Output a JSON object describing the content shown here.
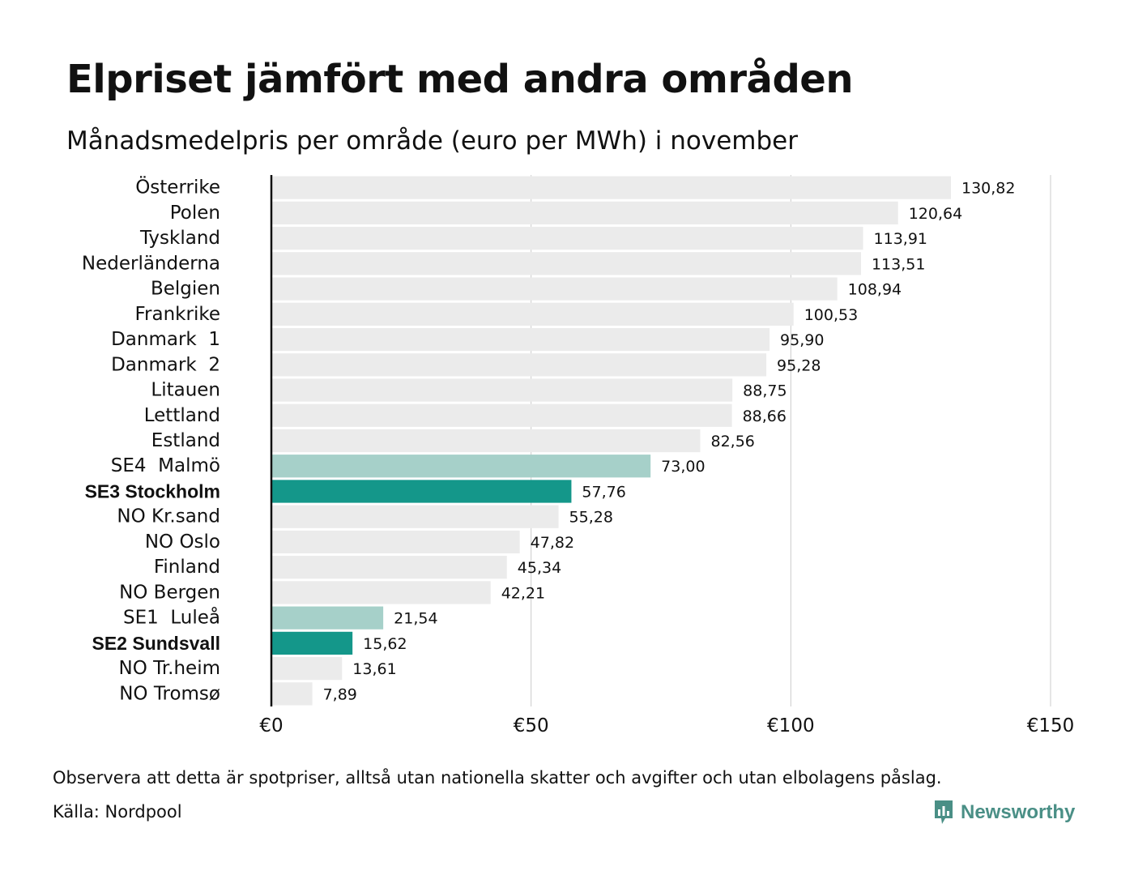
{
  "header": {
    "title": "Elpriset jämfört med andra områden",
    "subtitle": "Månadsmedelpris per område (euro per MWh) i november"
  },
  "footer": {
    "note": "Observera att detta är spotpriser, alltså utan nationella skatter och avgifter och utan elbolagens påslag.",
    "source": "Källa: Nordpool",
    "brand": "Newsworthy"
  },
  "colors": {
    "default_bar": "#ebebeb",
    "se_light_bar": "#a6d0c9",
    "se_highlight_bar": "#14978a",
    "gridline": "#cccccc",
    "axis": "#111111",
    "brand": "#4a8f86"
  },
  "icons": {
    "brand_logo": "bar-chart-speech-bubble-icon"
  },
  "chart_data": {
    "type": "bar",
    "orientation": "horizontal",
    "categories": [
      "Österrike",
      "Polen",
      "Tyskland",
      "Nederländerna",
      "Belgien",
      "Frankrike",
      "Danmark  1",
      "Danmark  2",
      "Litauen",
      "Lettland",
      "Estland",
      "SE4  Malmö",
      "SE3 Stockholm",
      "NO Kr.sand",
      "NO Oslo",
      "Finland",
      "NO Bergen",
      "SE1  Luleå",
      "SE2 Sundsvall",
      "NO Tr.heim",
      "NO Tromsø"
    ],
    "values": [
      130.82,
      120.64,
      113.91,
      113.51,
      108.94,
      100.53,
      95.9,
      95.28,
      88.75,
      88.66,
      82.56,
      73.0,
      57.76,
      55.28,
      47.82,
      45.34,
      42.21,
      21.54,
      15.62,
      13.61,
      7.89
    ],
    "value_labels": [
      "130,82",
      "120,64",
      "113,91",
      "113,51",
      "108,94",
      "100,53",
      "95,90",
      "95,28",
      "88,75",
      "88,66",
      "82,56",
      "73,00",
      "57,76",
      "55,28",
      "47,82",
      "45,34",
      "42,21",
      "21,54",
      "15,62",
      "13,61",
      "7,89"
    ],
    "bar_style": [
      "default",
      "default",
      "default",
      "default",
      "default",
      "default",
      "default",
      "default",
      "default",
      "default",
      "default",
      "se-light",
      "se-highlight",
      "default",
      "default",
      "default",
      "default",
      "se-light",
      "se-highlight",
      "default",
      "default"
    ],
    "bold_labels": [
      "SE3 Stockholm",
      "SE2 Sundsvall"
    ],
    "x_ticks": [
      0,
      50,
      100,
      150
    ],
    "x_tick_labels": [
      "€0",
      "€50",
      "€100",
      "€150"
    ],
    "xlim": [
      0,
      150
    ],
    "grid": "vertical",
    "legend": "none",
    "title": "Elpriset jämfört med andra områden",
    "subtitle": "Månadsmedelpris per område (euro per MWh) i november",
    "xlabel": "",
    "ylabel": ""
  }
}
